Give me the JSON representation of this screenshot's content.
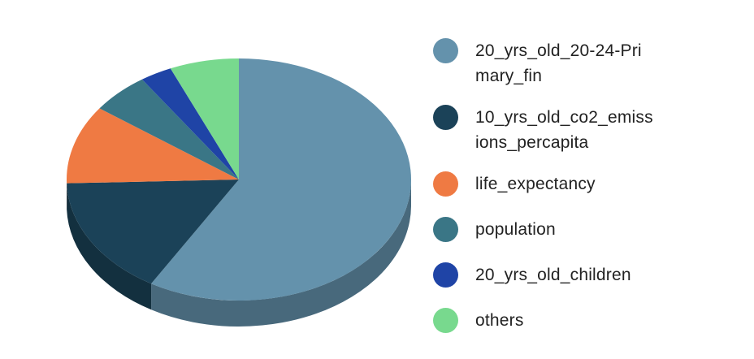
{
  "chart_data": {
    "type": "pie",
    "style": "3d",
    "legend_position": "right",
    "slices": [
      {
        "label": "20_yrs_old_20-24-Primary_fin",
        "value": 58.5,
        "color": "#6492ac"
      },
      {
        "label": "10_yrs_old_co2_emissions_percapita",
        "value": 16.0,
        "color": "#1b4258"
      },
      {
        "label": "life_expectancy",
        "value": 10.5,
        "color": "#ef7a43"
      },
      {
        "label": "population",
        "value": 5.5,
        "color": "#3a7686"
      },
      {
        "label": "20_yrs_old_children",
        "value": 3.0,
        "color": "#1f44a6"
      },
      {
        "label": "others",
        "value": 6.5,
        "color": "#78d98e"
      }
    ]
  }
}
